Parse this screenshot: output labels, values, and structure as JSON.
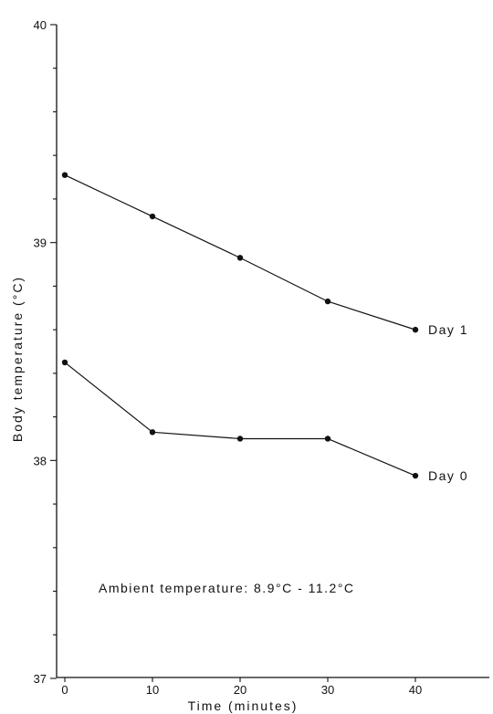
{
  "chart_data": {
    "type": "line",
    "xlabel": "Time (minutes)",
    "ylabel": "Body temperature (°C)",
    "x": [
      0,
      10,
      20,
      30,
      40
    ],
    "xlim": [
      0,
      40
    ],
    "ylim": [
      37,
      40
    ],
    "x_ticks": [
      "0",
      "10",
      "20",
      "30",
      "40"
    ],
    "y_ticks": [
      "37",
      "38",
      "39",
      "40"
    ],
    "series": [
      {
        "name": "Day 1",
        "values": [
          39.31,
          39.12,
          38.93,
          38.73,
          38.6
        ]
      },
      {
        "name": "Day 0",
        "values": [
          38.45,
          38.13,
          38.1,
          38.1,
          37.93
        ]
      }
    ],
    "annotation": "Ambient temperature: 8.9°C - 11.2°C",
    "grid": false,
    "legend": "inline labels at right end of each series",
    "colors": {
      "ink": "#111111",
      "background": "#ffffff"
    }
  }
}
